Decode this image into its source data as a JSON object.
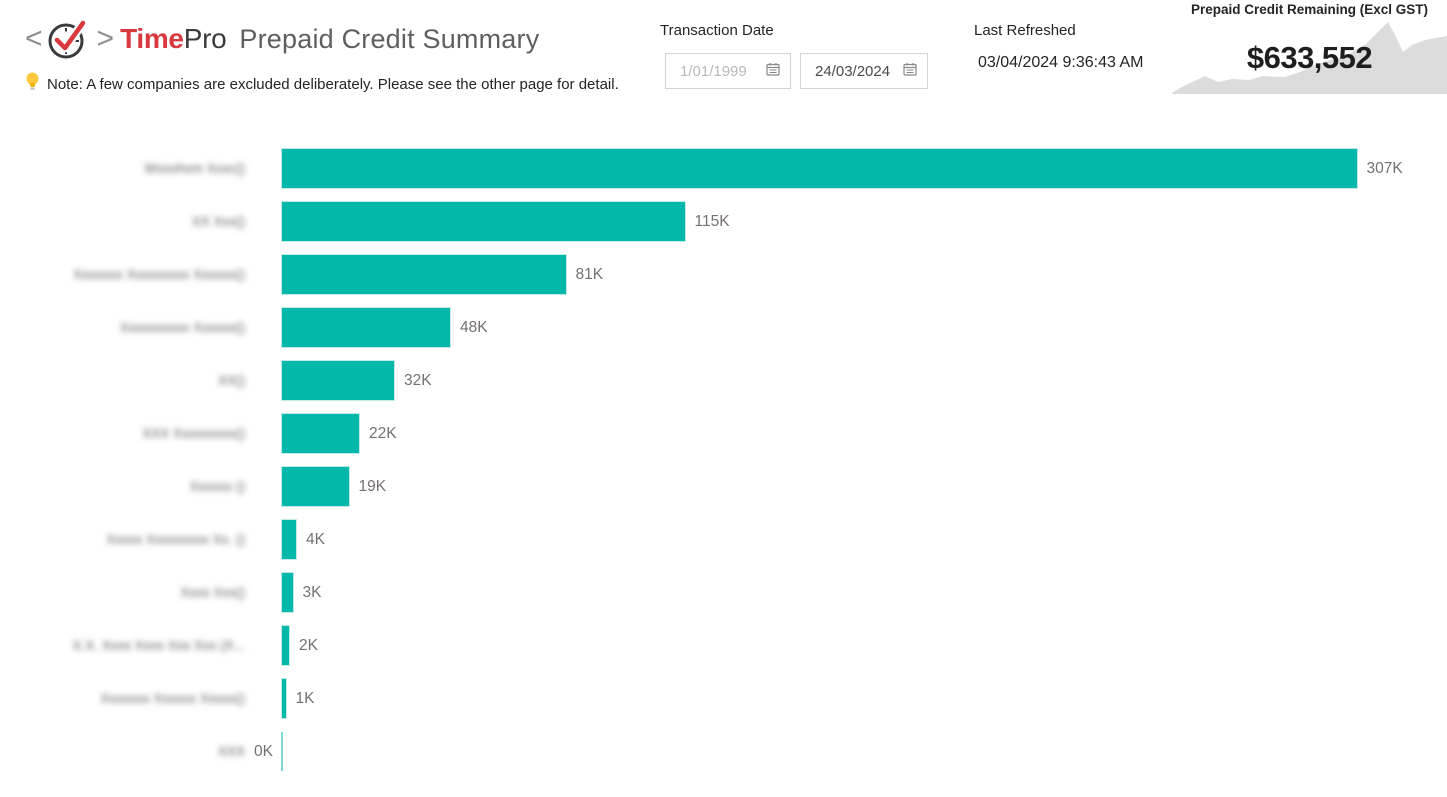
{
  "header": {
    "left_bracket": "<",
    "right_bracket": ">",
    "brand_bold": "Time",
    "brand_light": "Pro",
    "title": "Prepaid Credit Summary",
    "note_text": "Note: A few companies are excluded deliberately. Please see the other page for detail."
  },
  "filters": {
    "transaction_date_label": "Transaction Date",
    "start_date": "1/01/1999",
    "end_date": "24/03/2024"
  },
  "last_refreshed": {
    "label": "Last Refreshed",
    "value": "03/04/2024 9:36:43 AM"
  },
  "kpi": {
    "title": "Prepaid Credit Remaining (Excl GST)",
    "value": "$633,552",
    "sparkline": {
      "type": "area",
      "fill_color": "#dcdcdc",
      "points": [
        [
          0,
          93
        ],
        [
          8,
          88
        ],
        [
          33,
          76
        ],
        [
          46,
          82
        ],
        [
          60,
          79
        ],
        [
          78,
          80
        ],
        [
          90,
          76
        ],
        [
          113,
          77
        ],
        [
          128,
          72
        ],
        [
          143,
          65
        ],
        [
          158,
          60
        ],
        [
          173,
          57
        ],
        [
          183,
          50
        ],
        [
          193,
          45
        ],
        [
          203,
          35
        ],
        [
          216,
          22
        ],
        [
          223,
          35
        ],
        [
          231,
          52
        ],
        [
          240,
          45
        ],
        [
          253,
          40
        ],
        [
          275,
          36
        ]
      ]
    }
  },
  "chart_data": {
    "type": "bar",
    "orientation": "horizontal",
    "bar_color": "#01b8aa",
    "grid": false,
    "legend": false,
    "xlim_k": [
      0,
      333
    ],
    "categories_redacted": true,
    "categories": [
      "Wxxxhxm Xxxc()",
      "XX Xxx()",
      "Xxxxxxx Xxxxxxxxx Xxxxxx()",
      "Xxxxxxxxxx Xxxxxx()",
      "XX()",
      "XXX Xxxxxxxxx()",
      "Xxxxxx ()",
      "Xxxxx Xxxxxxxxx Xx. ()",
      "Xxxx Xxx()",
      "X.X. Xxxx Xxxx Xxx Xxx (X...",
      "Xxxxxxx Xxxxxx Xxxxx()",
      "XXX"
    ],
    "values_k": [
      307,
      115,
      81,
      48,
      32,
      22,
      19,
      4,
      3,
      2,
      1,
      0
    ],
    "value_labels": [
      "307K",
      "115K",
      "81K",
      "48K",
      "32K",
      "22K",
      "19K",
      "4K",
      "3K",
      "2K",
      "1K",
      "0K"
    ]
  }
}
